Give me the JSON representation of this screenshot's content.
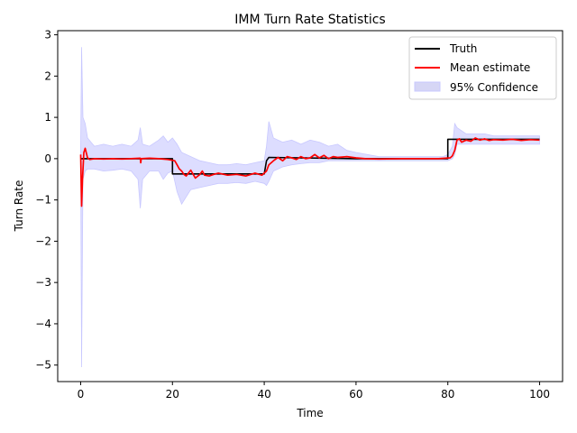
{
  "chart_data": {
    "type": "line",
    "title": "IMM Turn Rate Statistics",
    "xlabel": "Time",
    "ylabel": "Turn Rate",
    "xlim": [
      -5,
      105
    ],
    "ylim": [
      -5.4,
      3.1
    ],
    "xticks": [
      0,
      20,
      40,
      60,
      80,
      100
    ],
    "xtick_labels": [
      "0",
      "20",
      "40",
      "60",
      "80",
      "100"
    ],
    "yticks": [
      -5,
      -4,
      -3,
      -2,
      -1,
      0,
      1,
      2,
      3
    ],
    "ytick_labels": [
      "−5",
      "−4",
      "−3",
      "−2",
      "−1",
      "0",
      "1",
      "2",
      "3"
    ],
    "grid": false,
    "legend_position": "top-right",
    "colors": {
      "truth": "#000000",
      "mean": "#ff0000",
      "band_fill": "#ddddff",
      "band_edge": "#c8c8ff",
      "legend_band": "#d6d6f5"
    },
    "series": [
      {
        "name": "Truth",
        "x": [
          0,
          20,
          20,
          40,
          40.5,
          41,
          60,
          80,
          80,
          100
        ],
        "values": [
          0,
          0,
          -0.37,
          -0.37,
          -0.05,
          0.03,
          0.0,
          0.0,
          0.47,
          0.47
        ]
      },
      {
        "name": "Mean estimate",
        "x": [
          0,
          0.2,
          0.4,
          0.7,
          1,
          1.5,
          2,
          3,
          5,
          7,
          9,
          11,
          13,
          13.1,
          13.2,
          15,
          17,
          19,
          20.5,
          21,
          21.5,
          22,
          22.5,
          23,
          24,
          25,
          26,
          26.5,
          27,
          28,
          29,
          30,
          32,
          34,
          36,
          38,
          39.5,
          40.5,
          41,
          42,
          43,
          44,
          45,
          46,
          47,
          48,
          49,
          50,
          51,
          52,
          53,
          54,
          55,
          56,
          58,
          60,
          62,
          65,
          70,
          75,
          78,
          80.5,
          81,
          81.5,
          82,
          82.5,
          83,
          84,
          85,
          86,
          87,
          88,
          89,
          90,
          92,
          94,
          96,
          98,
          100
        ],
        "values": [
          0.1,
          -1.15,
          -0.5,
          0.15,
          0.25,
          0.02,
          -0.02,
          0.0,
          -0.01,
          0.0,
          -0.01,
          0.0,
          0.01,
          -0.1,
          0.0,
          0.01,
          0.0,
          -0.02,
          -0.05,
          -0.15,
          -0.25,
          -0.3,
          -0.38,
          -0.42,
          -0.28,
          -0.47,
          -0.38,
          -0.3,
          -0.4,
          -0.42,
          -0.38,
          -0.35,
          -0.4,
          -0.38,
          -0.42,
          -0.35,
          -0.4,
          -0.3,
          -0.15,
          -0.05,
          0.03,
          -0.05,
          0.05,
          0.02,
          -0.02,
          0.05,
          0.0,
          0.02,
          0.1,
          0.02,
          0.08,
          0.0,
          0.05,
          0.03,
          0.05,
          0.02,
          0.0,
          -0.01,
          0.0,
          0.0,
          0.0,
          0.02,
          0.07,
          0.2,
          0.45,
          0.48,
          0.4,
          0.45,
          0.42,
          0.5,
          0.45,
          0.48,
          0.44,
          0.46,
          0.45,
          0.47,
          0.44,
          0.46,
          0.45
        ]
      }
    ],
    "confidence_band": {
      "name": "95% Confidence",
      "x": [
        0,
        0.2,
        0.5,
        1,
        1.5,
        3,
        5,
        7,
        9,
        11,
        12.5,
        13,
        13.5,
        15,
        17,
        18,
        19,
        20,
        21,
        22,
        24,
        26,
        28,
        30,
        32,
        34,
        36,
        38,
        40,
        40.5,
        41,
        42,
        44,
        46,
        48,
        50,
        52,
        54,
        56,
        58,
        60,
        65,
        70,
        75,
        79,
        80,
        81,
        81.5,
        82,
        84,
        86,
        88,
        90,
        95,
        100
      ],
      "upper": [
        0.3,
        2.7,
        1.0,
        0.85,
        0.5,
        0.3,
        0.35,
        0.3,
        0.35,
        0.3,
        0.45,
        0.75,
        0.35,
        0.3,
        0.45,
        0.55,
        0.4,
        0.5,
        0.35,
        0.15,
        0.05,
        -0.05,
        -0.1,
        -0.15,
        -0.15,
        -0.12,
        -0.15,
        -0.1,
        -0.05,
        0.3,
        0.9,
        0.5,
        0.4,
        0.45,
        0.35,
        0.45,
        0.4,
        0.3,
        0.35,
        0.2,
        0.15,
        0.05,
        0.05,
        0.05,
        0.05,
        0.1,
        0.3,
        0.85,
        0.75,
        0.6,
        0.6,
        0.6,
        0.55,
        0.55,
        0.55
      ],
      "lower": [
        -0.2,
        -5.05,
        -0.5,
        -0.3,
        -0.25,
        -0.25,
        -0.3,
        -0.28,
        -0.25,
        -0.3,
        -0.5,
        -1.2,
        -0.5,
        -0.3,
        -0.3,
        -0.5,
        -0.35,
        -0.3,
        -0.8,
        -1.1,
        -0.75,
        -0.7,
        -0.65,
        -0.6,
        -0.6,
        -0.58,
        -0.6,
        -0.55,
        -0.6,
        -0.65,
        -0.55,
        -0.3,
        -0.2,
        -0.15,
        -0.12,
        -0.1,
        -0.1,
        -0.05,
        -0.05,
        -0.05,
        -0.05,
        -0.05,
        -0.05,
        -0.05,
        -0.05,
        -0.05,
        0.0,
        0.1,
        0.35,
        0.35,
        0.35,
        0.35,
        0.35,
        0.35,
        0.35
      ]
    },
    "legend": [
      {
        "label": "Truth",
        "kind": "line"
      },
      {
        "label": "Mean estimate",
        "kind": "line"
      },
      {
        "label": "95% Confidence",
        "kind": "patch"
      }
    ]
  }
}
